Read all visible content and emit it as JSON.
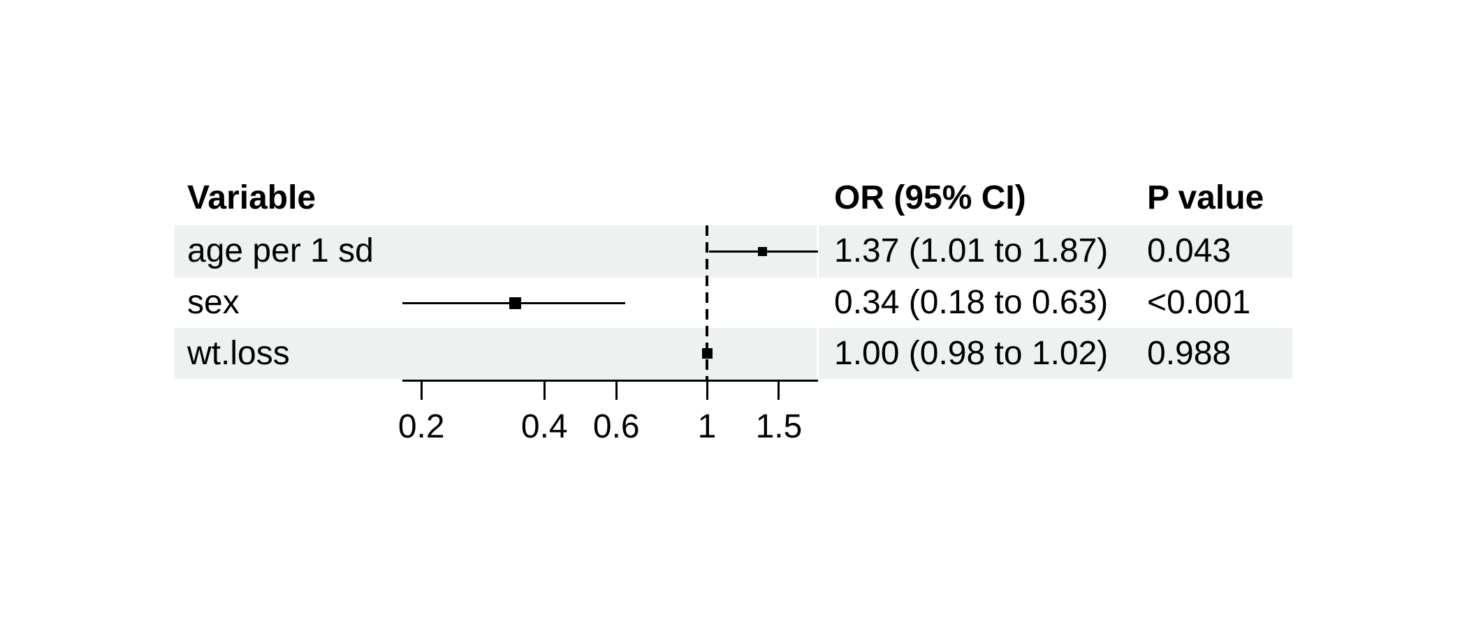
{
  "table": {
    "headers": {
      "variable": "Variable",
      "or_ci": "OR (95% CI)",
      "p_value": "P value"
    },
    "rows": [
      {
        "variable": "age per 1 sd",
        "or_ci": "1.37 (1.01 to 1.87)",
        "p_value": "0.043"
      },
      {
        "variable": "sex",
        "or_ci": "0.34 (0.18 to 0.63)",
        "p_value": "<0.001"
      },
      {
        "variable": "wt.loss",
        "or_ci": "1.00 (0.98 to 1.02)",
        "p_value": "0.988"
      }
    ]
  },
  "chart_data": {
    "type": "forest",
    "scale": "log",
    "title": "",
    "xlabel": "",
    "reference_line": 1,
    "axis_range": [
      0.18,
      1.87
    ],
    "x_ticks": [
      0.2,
      0.4,
      0.6,
      1,
      1.5
    ],
    "x_tick_labels": [
      "0.2",
      "0.4",
      "0.6",
      "1",
      "1.5"
    ],
    "series": [
      {
        "name": "age per 1 sd",
        "or": 1.37,
        "ci_low": 1.01,
        "ci_high": 1.87,
        "p_value": "0.043",
        "marker_size": 13
      },
      {
        "name": "sex",
        "or": 0.34,
        "ci_low": 0.18,
        "ci_high": 0.63,
        "p_value": "<0.001",
        "marker_size": 17
      },
      {
        "name": "wt.loss",
        "or": 1.0,
        "ci_low": 0.98,
        "ci_high": 1.02,
        "p_value": "0.988",
        "marker_size": 15
      }
    ],
    "colors": {
      "stripe": "#edf1f0",
      "line": "#000000",
      "marker": "#000000",
      "text": "#000000",
      "background": "#ffffff"
    },
    "legend": null,
    "grid": false
  }
}
